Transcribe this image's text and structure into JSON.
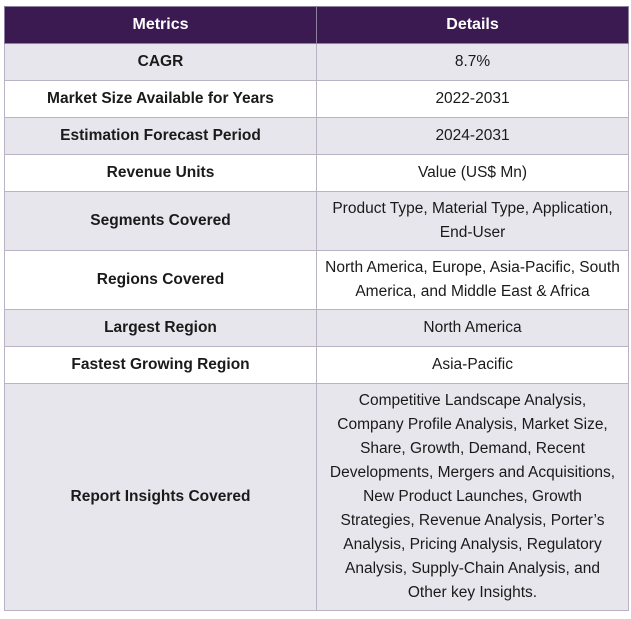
{
  "table": {
    "headers": [
      "Metrics",
      "Details"
    ],
    "rows": [
      {
        "metric": "CAGR",
        "details": "8.7%"
      },
      {
        "metric": "Market Size Available for Years",
        "details": "2022-2031"
      },
      {
        "metric": "Estimation Forecast Period",
        "details": "2024-2031"
      },
      {
        "metric": "Revenue Units",
        "details": "Value (US$ Mn)"
      },
      {
        "metric": "Segments Covered",
        "details": "Product Type, Material Type, Application, End-User"
      },
      {
        "metric": "Regions Covered",
        "details": "North America, Europe, Asia-Pacific, South America, and Middle East & Africa"
      },
      {
        "metric": "Largest Region",
        "details": "North America"
      },
      {
        "metric": "Fastest Growing Region",
        "details": "Asia-Pacific"
      },
      {
        "metric": "Report Insights Covered",
        "details": "Competitive Landscape Analysis, Company Profile Analysis, Market Size, Share, Growth, Demand, Recent Developments, Mergers and Acquisitions, New Product Launches, Growth Strategies, Revenue Analysis, Porter’s Analysis, Pricing Analysis, Regulatory Analysis, Supply-Chain Analysis, and Other key Insights."
      }
    ]
  },
  "colors": {
    "header_bg": "#3b1a52",
    "row_alt_bg": "#e8e6ed",
    "border": "#b9b3c3"
  }
}
